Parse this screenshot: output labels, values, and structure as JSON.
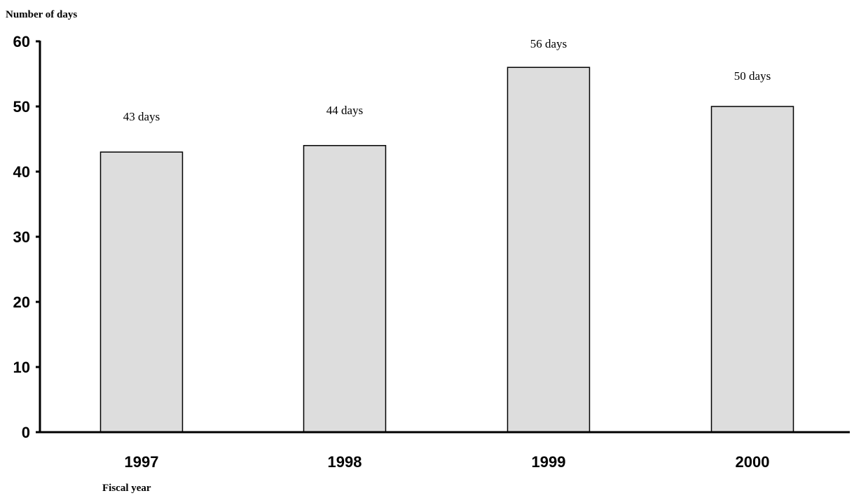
{
  "chart_data": {
    "type": "bar",
    "categories": [
      "1997",
      "1998",
      "1999",
      "2000"
    ],
    "values": [
      43,
      44,
      56,
      50
    ],
    "data_labels": [
      "43 days",
      "44 days",
      "56 days",
      "50 days"
    ],
    "ylabel": "Number of days",
    "xlabel": "Fiscal year",
    "ylim": [
      0,
      60
    ],
    "yticks": [
      "0",
      "10",
      "20",
      "30",
      "40",
      "50",
      "60"
    ],
    "grid": false,
    "bar_color": "#dddddd"
  }
}
